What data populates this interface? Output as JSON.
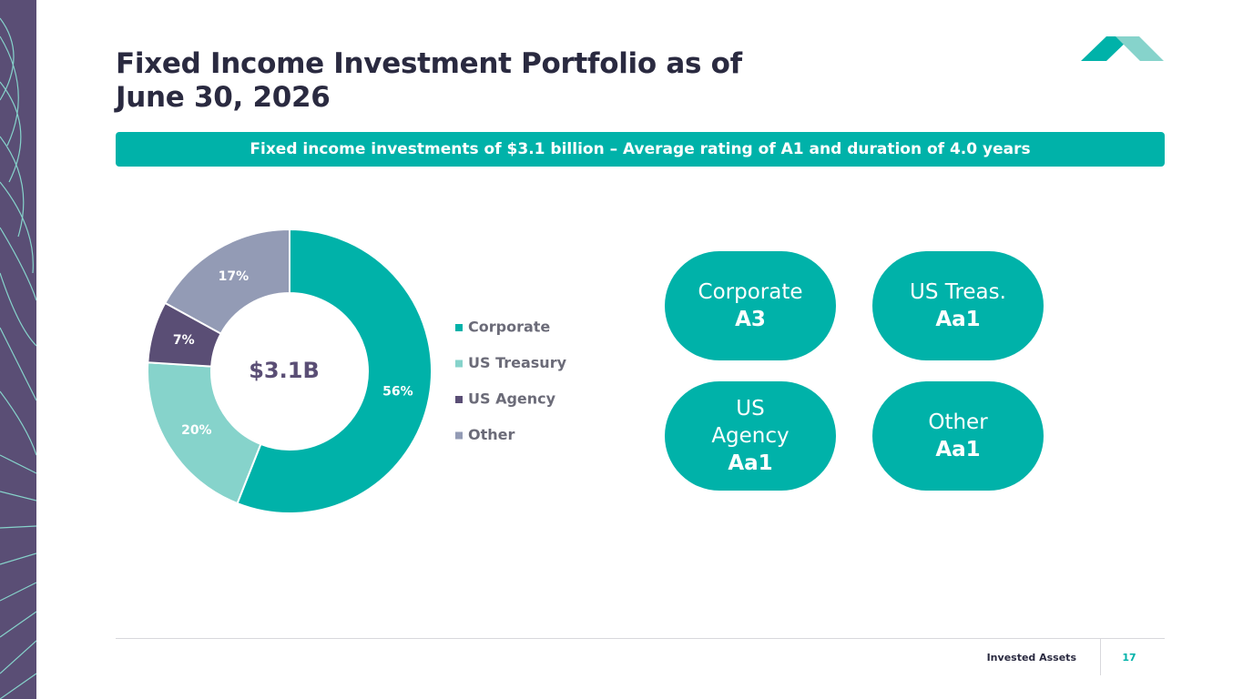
{
  "title": "Fixed Income Investment Portfolio as of June 30, 2026",
  "banner": "Fixed income investments of $3.1 billion – Average rating of A1 and duration of 4.0 years",
  "chart_data": {
    "type": "donut",
    "center_label": "$3.1B",
    "categories": [
      "Corporate",
      "US Treasury",
      "US Agency",
      "Other"
    ],
    "values": [
      56,
      20,
      7,
      17
    ],
    "value_labels": [
      "56%",
      "20%",
      "7%",
      "17%"
    ],
    "colors": [
      "#00b2a9",
      "#86d3cb",
      "#5a4e75",
      "#939bb5"
    ],
    "legend": "right"
  },
  "ratings": [
    {
      "label": "Corporate",
      "rating": "A3"
    },
    {
      "label": "US Treas.",
      "rating": "Aa1"
    },
    {
      "label": "US Agency",
      "rating": "Aa1"
    },
    {
      "label": "Other",
      "rating": "Aa1"
    }
  ],
  "footer": {
    "section": "Invested Assets",
    "page": "17"
  }
}
